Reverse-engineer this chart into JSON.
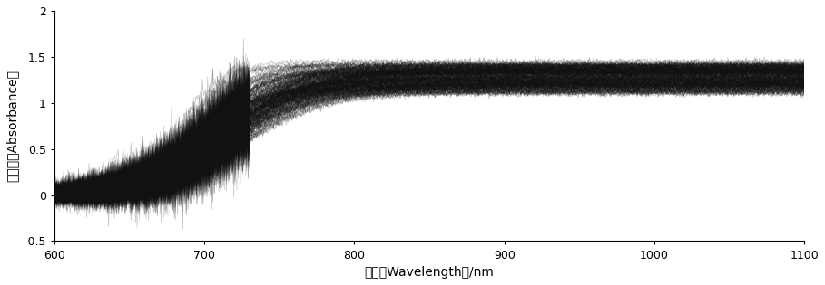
{
  "title": "",
  "xlabel": "波长（Wavelength）/nm",
  "ylabel": "吸光率（Absorbance）",
  "xlim": [
    600,
    1100
  ],
  "ylim": [
    -0.5,
    2.0
  ],
  "xticks": [
    600,
    700,
    800,
    900,
    1000,
    1100
  ],
  "yticks": [
    -0.5,
    0,
    0.5,
    1.0,
    1.5,
    2.0
  ],
  "n_curves": 200,
  "line_color": "#111111",
  "line_alpha": 0.25,
  "line_width": 0.5,
  "background_color": "#ffffff"
}
